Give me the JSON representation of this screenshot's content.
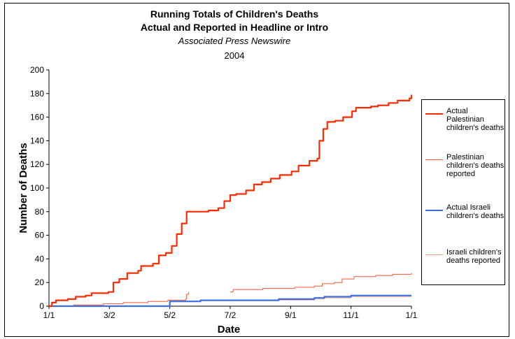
{
  "chart_data": {
    "type": "line",
    "title": "Running Totals of Children's Deaths",
    "subtitle": "Actual and Reported in Headline or Intro",
    "source": "Associated Press Newswire",
    "year": "2004",
    "xlabel": "Date",
    "ylabel": "Number of Deaths",
    "x_ticks": [
      "1/1",
      "3/2",
      "5/2",
      "7/2",
      "9/1",
      "11/1",
      "1/1"
    ],
    "x_tick_days": [
      0,
      61,
      122,
      183,
      244,
      305,
      366
    ],
    "xlim": [
      "2004-01-01",
      "2005-01-01"
    ],
    "ylim": [
      0,
      200
    ],
    "y_ticks": [
      0,
      20,
      40,
      60,
      80,
      100,
      120,
      140,
      160,
      180,
      200
    ],
    "grid": false,
    "legend_position": "right",
    "series": [
      {
        "name": "Actual Palestinian children's deaths",
        "color": "#ff2a00",
        "width": 2.2,
        "points": [
          [
            "2004-01-01",
            0
          ],
          [
            "2004-01-04",
            3
          ],
          [
            "2004-01-08",
            5
          ],
          [
            "2004-01-20",
            6
          ],
          [
            "2004-01-28",
            8
          ],
          [
            "2004-02-07",
            9
          ],
          [
            "2004-02-13",
            11
          ],
          [
            "2004-03-01",
            12
          ],
          [
            "2004-03-06",
            20
          ],
          [
            "2004-03-12",
            23
          ],
          [
            "2004-03-20",
            28
          ],
          [
            "2004-03-31",
            30
          ],
          [
            "2004-04-03",
            34
          ],
          [
            "2004-04-15",
            36
          ],
          [
            "2004-04-21",
            43
          ],
          [
            "2004-04-28",
            45
          ],
          [
            "2004-05-04",
            51
          ],
          [
            "2004-05-09",
            61
          ],
          [
            "2004-05-14",
            70
          ],
          [
            "2004-05-19",
            80
          ],
          [
            "2004-06-10",
            81
          ],
          [
            "2004-06-20",
            83
          ],
          [
            "2004-06-26",
            89
          ],
          [
            "2004-07-02",
            94
          ],
          [
            "2004-07-08",
            95
          ],
          [
            "2004-07-18",
            98
          ],
          [
            "2004-07-26",
            103
          ],
          [
            "2004-08-03",
            105
          ],
          [
            "2004-08-12",
            108
          ],
          [
            "2004-08-21",
            111
          ],
          [
            "2004-09-02",
            114
          ],
          [
            "2004-09-09",
            119
          ],
          [
            "2004-09-20",
            123
          ],
          [
            "2004-09-28",
            125
          ],
          [
            "2004-09-30",
            140
          ],
          [
            "2004-10-04",
            150
          ],
          [
            "2004-10-08",
            156
          ],
          [
            "2004-10-16",
            157
          ],
          [
            "2004-10-24",
            160
          ],
          [
            "2004-11-02",
            165
          ],
          [
            "2004-11-06",
            168
          ],
          [
            "2004-11-21",
            169
          ],
          [
            "2004-11-28",
            170
          ],
          [
            "2004-12-09",
            172
          ],
          [
            "2004-12-18",
            174
          ],
          [
            "2004-12-30",
            176
          ],
          [
            "2005-01-01",
            179
          ]
        ]
      },
      {
        "name": "Palestinian children's deaths reported",
        "color": "#ff5533",
        "width": 1,
        "segments": [
          [
            [
              "2004-01-01",
              0
            ],
            [
              "2004-01-26",
              1
            ],
            [
              "2004-02-25",
              2
            ],
            [
              "2004-03-16",
              3
            ],
            [
              "2004-04-10",
              4
            ],
            [
              "2004-04-30",
              5
            ],
            [
              "2004-05-18",
              6
            ],
            [
              "2004-05-19",
              10
            ],
            [
              "2004-05-21",
              12
            ]
          ],
          [
            [
              "2004-07-02",
              12
            ],
            [
              "2004-07-05",
              14
            ],
            [
              "2004-08-04",
              15
            ],
            [
              "2004-09-05",
              16
            ],
            [
              "2004-09-25",
              17
            ],
            [
              "2004-10-03",
              19
            ],
            [
              "2004-10-15",
              20
            ],
            [
              "2004-10-23",
              23
            ],
            [
              "2004-11-04",
              25
            ],
            [
              "2004-11-26",
              26
            ],
            [
              "2004-12-13",
              27
            ],
            [
              "2005-01-01",
              28
            ]
          ]
        ]
      },
      {
        "name": "Actual Israeli children's deaths",
        "color": "#3a6fe0",
        "width": 2.2,
        "points": [
          [
            "2004-01-01",
            0
          ],
          [
            "2004-05-01",
            0
          ],
          [
            "2004-05-02",
            4
          ],
          [
            "2004-06-02",
            5
          ],
          [
            "2004-08-20",
            6
          ],
          [
            "2004-09-25",
            7
          ],
          [
            "2004-10-05",
            8
          ],
          [
            "2004-11-01",
            9
          ],
          [
            "2005-01-01",
            9
          ]
        ]
      },
      {
        "name": "Israeli children's deaths reported",
        "color": "#ff9a80",
        "width": 0.8,
        "points": [
          [
            "2004-01-01",
            0
          ],
          [
            "2004-05-01",
            0
          ],
          [
            "2004-05-02",
            4
          ],
          [
            "2004-06-02",
            5
          ],
          [
            "2004-08-20",
            5
          ],
          [
            "2004-09-25",
            6
          ],
          [
            "2004-10-05",
            7
          ],
          [
            "2004-11-01",
            8
          ],
          [
            "2005-01-01",
            8
          ]
        ]
      }
    ]
  },
  "legend": {
    "items": [
      {
        "lines": [
          "Actual",
          "Palestinian",
          "children's deaths"
        ],
        "color": "#ff2a00",
        "width": 2.5
      },
      {
        "lines": [
          "Palestinian",
          "children's deaths",
          "reported"
        ],
        "color": "#ff5533",
        "width": 1
      },
      {
        "lines": [
          "Actual Israeli",
          "children's deaths"
        ],
        "color": "#3a6fe0",
        "width": 2.5
      },
      {
        "lines": [
          "Israeli children's",
          "deaths reported"
        ],
        "color": "#ff9a80",
        "width": 1
      }
    ]
  }
}
